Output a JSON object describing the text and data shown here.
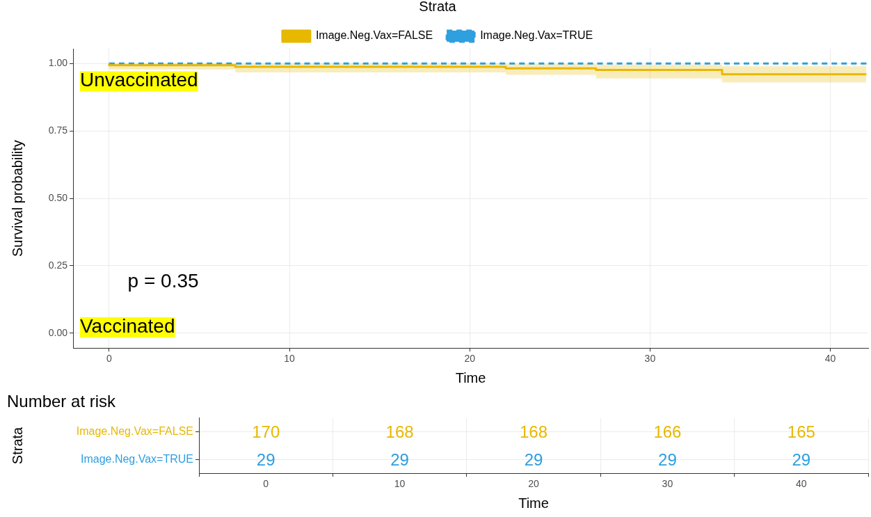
{
  "chart_data": [
    {
      "type": "step",
      "xlabel": "Time",
      "ylabel": "Survival probability",
      "legend_title": "Strata",
      "legend": "top",
      "xlim": [
        -2,
        42.1
      ],
      "xticks": [
        0,
        10,
        20,
        30,
        40
      ],
      "ylim": [
        -0.055,
        1.055
      ],
      "yticks": [
        {
          "value": 0,
          "label": "0.00"
        },
        {
          "value": 0.25,
          "label": "0.25"
        },
        {
          "value": 0.5,
          "label": "0.50"
        },
        {
          "value": 0.75,
          "label": "0.75"
        },
        {
          "value": 1,
          "label": "1.00"
        }
      ],
      "grid": true,
      "series": [
        {
          "name": "Image.Neg.Vax=FALSE",
          "color": "#e7b800",
          "line_style": "solid",
          "x": [
            0,
            7,
            22,
            27,
            34,
            42
          ],
          "values": [
            1,
            0.994,
            0.988,
            0.982,
            0.976,
            0.96
          ],
          "lower": [
            1,
            0.978,
            0.967,
            0.958,
            0.945,
            0.93
          ],
          "upper": [
            1,
            1,
            1,
            0.998,
            0.996,
            0.99
          ]
        },
        {
          "name": "Image.Neg.Vax=TRUE",
          "color": "#2e9fdf",
          "line_style": "dashed",
          "x": [
            0,
            42
          ],
          "values": [
            1,
            1
          ]
        }
      ],
      "annotations": [
        "p = 0.35",
        "Unvaccinated",
        "Vaccinated"
      ]
    },
    {
      "type": "heatmap",
      "title": "Number at risk",
      "xlabel": "Time",
      "ylabel": "Strata",
      "grid": true,
      "data_labels": true,
      "categories": [
        "0",
        "10",
        "20",
        "30",
        "40"
      ],
      "y_categories": [
        "Image.Neg.Vax=FALSE",
        "Image.Neg.Vax=TRUE"
      ],
      "cells": [
        [
          170,
          168,
          168,
          166,
          165
        ],
        [
          29,
          29,
          29,
          29,
          29
        ]
      ]
    }
  ]
}
